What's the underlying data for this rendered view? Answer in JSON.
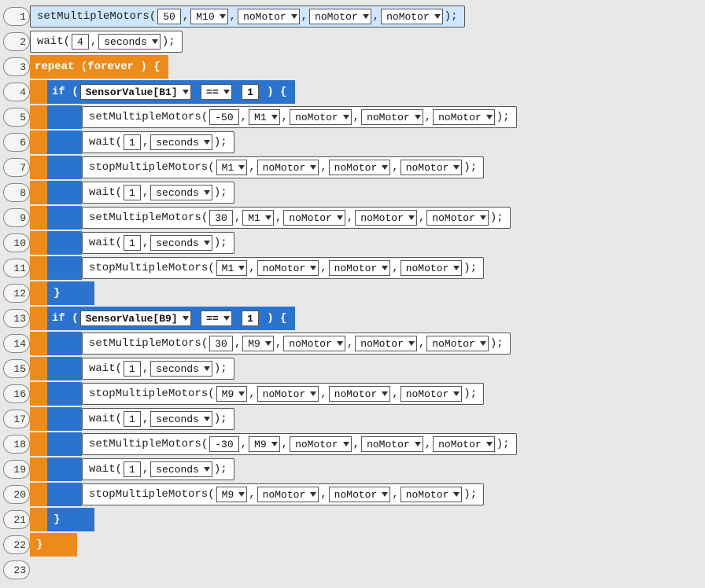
{
  "colors": {
    "orange": "#ed8b1a",
    "blue": "#2a74d0",
    "highlight": "#cfe6ff",
    "bg": "#e8e8e8"
  },
  "lines": {
    "l1": {
      "num": "1",
      "fn": "setMultipleMotors",
      "p1": "50",
      "p2": "M10",
      "p3": "noMotor",
      "p4": "noMotor",
      "p5": "noMotor"
    },
    "l2": {
      "num": "2",
      "fn": "wait",
      "p1": "4",
      "p2": "seconds"
    },
    "l3": {
      "num": "3",
      "kw": "repeat (forever ) {"
    },
    "l4": {
      "num": "4",
      "kw": "if (",
      "sv": "SensorValue[B1]",
      "op": "==",
      "val": "1",
      "end": ") {"
    },
    "l5": {
      "num": "5",
      "fn": "setMultipleMotors",
      "p1": "-50",
      "p2": "M1",
      "p3": "noMotor",
      "p4": "noMotor",
      "p5": "noMotor"
    },
    "l6": {
      "num": "6",
      "fn": "wait",
      "p1": "1",
      "p2": "seconds"
    },
    "l7": {
      "num": "7",
      "fn": "stopMultipleMotors",
      "p1": "M1",
      "p2": "noMotor",
      "p3": "noMotor",
      "p4": "noMotor"
    },
    "l8": {
      "num": "8",
      "fn": "wait",
      "p1": "1",
      "p2": "seconds"
    },
    "l9": {
      "num": "9",
      "fn": "setMultipleMotors",
      "p1": "30",
      "p2": "M1",
      "p3": "noMotor",
      "p4": "noMotor",
      "p5": "noMotor"
    },
    "l10": {
      "num": "10",
      "fn": "wait",
      "p1": "1",
      "p2": "seconds"
    },
    "l11": {
      "num": "11",
      "fn": "stopMultipleMotors",
      "p1": "M1",
      "p2": "noMotor",
      "p3": "noMotor",
      "p4": "noMotor"
    },
    "l12": {
      "num": "12",
      "brace": "}"
    },
    "l13": {
      "num": "13",
      "kw": "if (",
      "sv": "SensorValue[B9]",
      "op": "==",
      "val": "1",
      "end": ") {"
    },
    "l14": {
      "num": "14",
      "fn": "setMultipleMotors",
      "p1": "30",
      "p2": "M9",
      "p3": "noMotor",
      "p4": "noMotor",
      "p5": "noMotor"
    },
    "l15": {
      "num": "15",
      "fn": "wait",
      "p1": "1",
      "p2": "seconds"
    },
    "l16": {
      "num": "16",
      "fn": "stopMultipleMotors",
      "p1": "M9",
      "p2": "noMotor",
      "p3": "noMotor",
      "p4": "noMotor"
    },
    "l17": {
      "num": "17",
      "fn": "wait",
      "p1": "1",
      "p2": "seconds"
    },
    "l18": {
      "num": "18",
      "fn": "setMultipleMotors",
      "p1": "-30",
      "p2": "M9",
      "p3": "noMotor",
      "p4": "noMotor",
      "p5": "noMotor"
    },
    "l19": {
      "num": "19",
      "fn": "wait",
      "p1": "1",
      "p2": "seconds"
    },
    "l20": {
      "num": "20",
      "fn": "stopMultipleMotors",
      "p1": "M9",
      "p2": "noMotor",
      "p3": "noMotor",
      "p4": "noMotor"
    },
    "l21": {
      "num": "21",
      "brace": "}"
    },
    "l22": {
      "num": "22",
      "brace": "}"
    },
    "l23": {
      "num": "23"
    }
  },
  "tokens": {
    "open": "(",
    "close": ");",
    "comma": ","
  }
}
